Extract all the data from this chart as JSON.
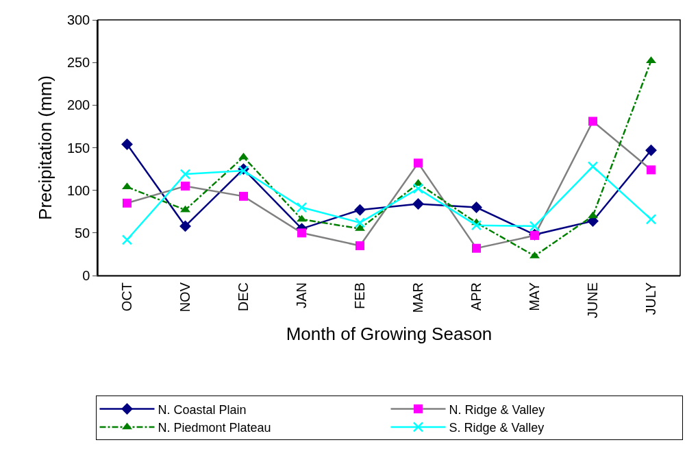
{
  "chart_data": {
    "type": "line",
    "xlabel": "Month of Growing Season",
    "ylabel": "Precipitation (mm)",
    "categories": [
      "OCT",
      "NOV",
      "DEC",
      "JAN",
      "FEB",
      "MAR",
      "APR",
      "MAY",
      "JUNE",
      "JULY"
    ],
    "series": [
      {
        "name": "N. Coastal Plain",
        "color": "#000080",
        "marker": "diamond",
        "line_style": "solid",
        "values": [
          154,
          58,
          125,
          55,
          77,
          84,
          80,
          48,
          64,
          147
        ]
      },
      {
        "name": "N. Ridge & Valley",
        "color": "#808080",
        "colors": [
          "#ff00ff",
          "#ff00ff",
          "#ff00ff",
          "#ff00ff",
          "#ff00ff",
          "#ff00ff",
          "#ff00ff",
          "#ff00ff",
          "#ff00ff",
          "#ff00ff"
        ],
        "marker": "square",
        "line_style": "solid",
        "values": [
          85,
          105,
          93,
          50,
          35,
          132,
          32,
          47,
          181,
          124
        ]
      },
      {
        "name": "N. Piedmont Plateau",
        "color": "#008000",
        "marker": "triangle",
        "line_style": "dashed",
        "values": [
          104,
          77,
          139,
          66,
          55,
          108,
          62,
          23,
          70,
          252
        ]
      },
      {
        "name": "S. Ridge & Valley",
        "color": "#00ffff",
        "marker": "cross",
        "line_style": "solid",
        "values": [
          42,
          119,
          123,
          80,
          62,
          102,
          59,
          58,
          128,
          66
        ]
      }
    ],
    "ylim": [
      0,
      300
    ],
    "yticks": [
      0,
      50,
      100,
      150,
      200,
      250,
      300
    ],
    "legend": "bottom"
  }
}
